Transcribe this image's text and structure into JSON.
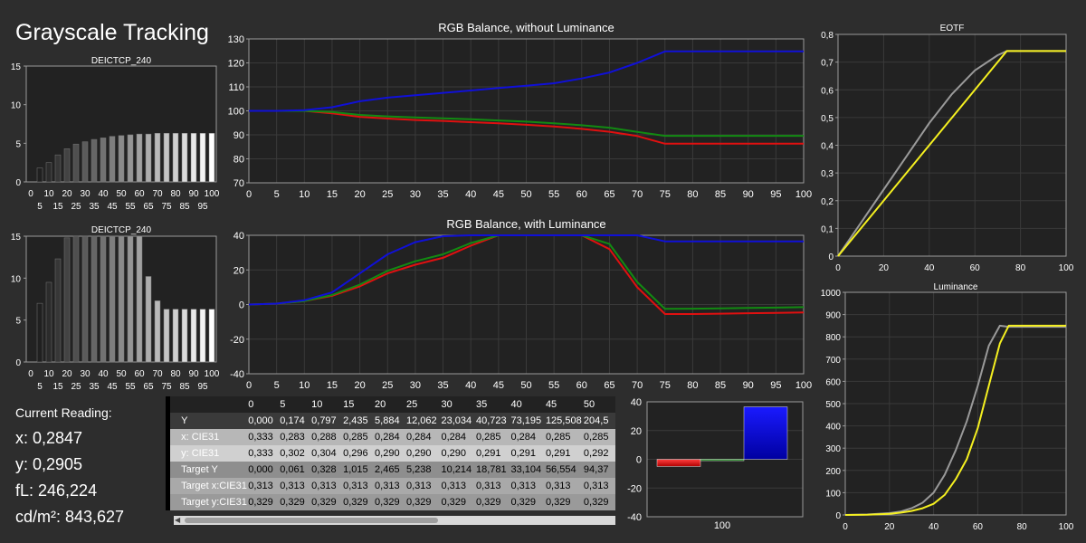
{
  "title": "Grayscale Tracking",
  "readings": {
    "header": "Current Reading:",
    "x": "x: 0,2847",
    "y": "y: 0,2905",
    "fl": "fL: 246,224",
    "cdm2": "cd/m²: 843,627"
  },
  "colors": {
    "red": "#e01010",
    "green": "#128a12",
    "blue": "#1010d8",
    "eotf_measured": "#f5f020",
    "eotf_target": "#9a9a9a",
    "panel_bg": "#222222",
    "grid": "#3a3a3a"
  },
  "chart_data": [
    {
      "id": "deictcp_top",
      "type": "bar",
      "title": "DEICTCP_240",
      "categories": [
        "0",
        "5",
        "10",
        "15",
        "20",
        "25",
        "30",
        "35",
        "40",
        "45",
        "50",
        "55",
        "60",
        "65",
        "70",
        "75",
        "80",
        "85",
        "90",
        "95",
        "100"
      ],
      "xticks_top": [
        "0",
        "10",
        "20",
        "30",
        "40",
        "50",
        "60",
        "70",
        "80",
        "90",
        "100"
      ],
      "xticks_bottom": [
        "5",
        "15",
        "25",
        "35",
        "45",
        "55",
        "65",
        "75",
        "85",
        "95"
      ],
      "values": [
        0,
        1.8,
        2.5,
        3.5,
        4.3,
        4.9,
        5.2,
        5.5,
        5.7,
        5.9,
        6.0,
        6.1,
        6.2,
        6.2,
        6.3,
        6.3,
        6.3,
        6.3,
        6.3,
        6.3,
        6.3
      ],
      "ylim": [
        0,
        15
      ],
      "yticks": [
        0,
        5,
        10,
        15
      ]
    },
    {
      "id": "deictcp_bottom",
      "type": "bar",
      "title": "DEICTCP_240",
      "categories": [
        "0",
        "5",
        "10",
        "15",
        "20",
        "25",
        "30",
        "35",
        "40",
        "45",
        "50",
        "55",
        "60",
        "65",
        "70",
        "75",
        "80",
        "85",
        "90",
        "95",
        "100"
      ],
      "xticks_top": [
        "0",
        "10",
        "20",
        "30",
        "40",
        "50",
        "60",
        "70",
        "80",
        "90",
        "100"
      ],
      "xticks_bottom": [
        "5",
        "15",
        "25",
        "35",
        "45",
        "55",
        "65",
        "75",
        "85",
        "95"
      ],
      "values": [
        0,
        7.0,
        9.5,
        12.3,
        14.8,
        15,
        15,
        15,
        15,
        15,
        15,
        15,
        15,
        10.2,
        7.3,
        6.3,
        6.3,
        6.3,
        6.3,
        6.3,
        6.3
      ],
      "ylim": [
        0,
        15
      ],
      "yticks": [
        0,
        5,
        10,
        15
      ]
    },
    {
      "id": "rgb_without",
      "type": "line",
      "title": "RGB Balance, without Luminance",
      "x": [
        0,
        5,
        10,
        15,
        20,
        25,
        30,
        35,
        40,
        45,
        50,
        55,
        60,
        65,
        70,
        75,
        80,
        85,
        90,
        95,
        100
      ],
      "xticks": [
        "0",
        "5",
        "10",
        "15",
        "20",
        "25",
        "30",
        "35",
        "40",
        "45",
        "50",
        "55",
        "60",
        "65",
        "70",
        "75",
        "80",
        "85",
        "90",
        "95",
        "100"
      ],
      "ylim": [
        70,
        130
      ],
      "yticks": [
        "70",
        "80",
        "90",
        "100",
        "110",
        "120",
        "130"
      ],
      "series": [
        {
          "color": "red",
          "values": [
            100,
            100,
            100,
            99,
            97.5,
            96.8,
            96.2,
            95.8,
            95.3,
            94.8,
            94.2,
            93.5,
            92.5,
            91.3,
            89.5,
            86.3,
            86.3,
            86.3,
            86.3,
            86.3,
            86.3
          ]
        },
        {
          "color": "green",
          "values": [
            100,
            100,
            100,
            99.5,
            98.3,
            97.7,
            97.3,
            96.9,
            96.5,
            96.0,
            95.5,
            94.8,
            94.0,
            93.0,
            91.2,
            89.6,
            89.6,
            89.6,
            89.6,
            89.6,
            89.6
          ]
        },
        {
          "color": "blue",
          "values": [
            100,
            100,
            100.3,
            101.5,
            104,
            105.5,
            106.5,
            107.5,
            108.5,
            109.5,
            110.5,
            111.5,
            113.5,
            116,
            120,
            124.8,
            124.8,
            124.8,
            124.8,
            124.8,
            124.8
          ]
        }
      ]
    },
    {
      "id": "rgb_with",
      "type": "line",
      "title": "RGB Balance, with Luminance",
      "x": [
        0,
        5,
        10,
        15,
        20,
        25,
        30,
        35,
        40,
        45,
        50,
        55,
        60,
        65,
        70,
        75,
        80,
        85,
        90,
        95,
        100
      ],
      "xticks": [
        "0",
        "5",
        "10",
        "15",
        "20",
        "25",
        "30",
        "35",
        "40",
        "45",
        "50",
        "55",
        "60",
        "65",
        "70",
        "75",
        "80",
        "85",
        "90",
        "95",
        "100"
      ],
      "ylim": [
        -40,
        40
      ],
      "yticks": [
        "-40",
        "-20",
        "0",
        "20",
        "40"
      ],
      "series": [
        {
          "color": "red",
          "values": [
            0,
            0.5,
            2,
            5,
            10.5,
            18,
            23,
            27,
            34,
            40,
            40,
            40,
            40,
            32,
            10,
            -5.5,
            -5.5,
            -5.3,
            -5,
            -4.8,
            -4.6
          ]
        },
        {
          "color": "green",
          "values": [
            0,
            0.5,
            2,
            5.5,
            11.5,
            19.5,
            25,
            29,
            35.5,
            40,
            40,
            40,
            40,
            35,
            13,
            -2.5,
            -2.4,
            -2.2,
            -2,
            -1.8,
            -1.5
          ]
        },
        {
          "color": "blue",
          "values": [
            0,
            0.5,
            2.5,
            7,
            18,
            29,
            36,
            39.5,
            40,
            40,
            40,
            40,
            40,
            40,
            40,
            36.5,
            36.5,
            36.5,
            36.5,
            36.5,
            36.5
          ]
        }
      ]
    },
    {
      "id": "eotf",
      "type": "line",
      "title": "EOTF",
      "x": [
        0,
        10,
        20,
        30,
        40,
        50,
        60,
        70,
        74,
        80,
        90,
        100
      ],
      "xticks": [
        "0",
        "20",
        "40",
        "60",
        "80",
        "100"
      ],
      "ylim": [
        0,
        0.8
      ],
      "yticks": [
        "0",
        "0,1",
        "0,2",
        "0,3",
        "0,4",
        "0,5",
        "0,6",
        "0,7",
        "0,8"
      ],
      "series": [
        {
          "color": "eotf_target",
          "values": [
            0,
            0.12,
            0.24,
            0.36,
            0.48,
            0.585,
            0.67,
            0.725,
            0.74,
            0.74,
            0.74,
            0.74
          ]
        },
        {
          "color": "eotf_measured",
          "values": [
            0,
            0.1,
            0.2,
            0.3,
            0.4,
            0.5,
            0.6,
            0.7,
            0.74,
            0.74,
            0.74,
            0.74
          ]
        }
      ]
    },
    {
      "id": "luminance",
      "type": "line",
      "title": "Luminance",
      "x": [
        0,
        10,
        20,
        25,
        30,
        35,
        40,
        45,
        50,
        55,
        60,
        65,
        70,
        74,
        80,
        90,
        100
      ],
      "xticks": [
        "0",
        "20",
        "40",
        "60",
        "80",
        "100"
      ],
      "ylim": [
        0,
        1000
      ],
      "yticks": [
        "0",
        "100",
        "200",
        "300",
        "400",
        "500",
        "600",
        "700",
        "800",
        "900",
        "1000"
      ],
      "series": [
        {
          "color": "eotf_target",
          "values": [
            0,
            2,
            8,
            15,
            30,
            55,
            100,
            180,
            290,
            420,
            580,
            760,
            850,
            845,
            845,
            845,
            845
          ]
        },
        {
          "color": "eotf_measured",
          "values": [
            0,
            1,
            5,
            10,
            18,
            30,
            50,
            90,
            160,
            250,
            390,
            580,
            770,
            850,
            850,
            850,
            850
          ]
        }
      ]
    },
    {
      "id": "rgb_current",
      "type": "bar",
      "categories": [
        "100"
      ],
      "ylim": [
        -40,
        40
      ],
      "yticks": [
        "-40",
        "-20",
        "0",
        "20",
        "40"
      ],
      "series": [
        {
          "color": "red",
          "values": [
            -5
          ]
        },
        {
          "color": "green",
          "values": [
            -1
          ]
        },
        {
          "color": "blue",
          "values": [
            36.5
          ]
        }
      ]
    }
  ],
  "table": {
    "headers": [
      "0",
      "5",
      "10",
      "15",
      "20",
      "25",
      "30",
      "35",
      "40",
      "45",
      "50"
    ],
    "rows": [
      {
        "label": "Y",
        "values": [
          "0,000",
          "0,174",
          "0,797",
          "2,435",
          "5,884",
          "12,062",
          "23,034",
          "40,723",
          "73,195",
          "125,508",
          "204,5"
        ]
      },
      {
        "label": "x: CIE31",
        "values": [
          "0,333",
          "0,283",
          "0,288",
          "0,285",
          "0,284",
          "0,284",
          "0,284",
          "0,285",
          "0,284",
          "0,285",
          "0,285"
        ]
      },
      {
        "label": "y: CIE31",
        "values": [
          "0,333",
          "0,302",
          "0,304",
          "0,296",
          "0,290",
          "0,290",
          "0,290",
          "0,291",
          "0,291",
          "0,291",
          "0,292"
        ]
      },
      {
        "label": "Target Y",
        "values": [
          "0,000",
          "0,061",
          "0,328",
          "1,015",
          "2,465",
          "5,238",
          "10,214",
          "18,781",
          "33,104",
          "56,554",
          "94,37"
        ]
      },
      {
        "label": "Target x:CIE31",
        "values": [
          "0,313",
          "0,313",
          "0,313",
          "0,313",
          "0,313",
          "0,313",
          "0,313",
          "0,313",
          "0,313",
          "0,313",
          "0,313"
        ]
      },
      {
        "label": "Target y:CIE31",
        "values": [
          "0,329",
          "0,329",
          "0,329",
          "0,329",
          "0,329",
          "0,329",
          "0,329",
          "0,329",
          "0,329",
          "0,329",
          "0,329"
        ]
      }
    ]
  }
}
